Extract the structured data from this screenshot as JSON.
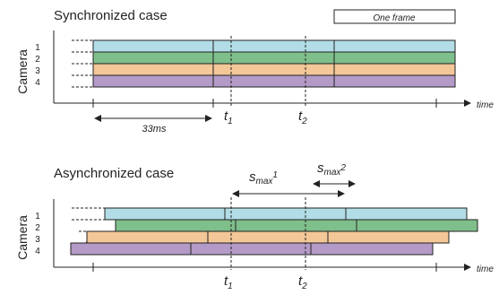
{
  "synchronized": {
    "title": "Synchronized case",
    "legend": "One frame",
    "ylabel": "Camera",
    "camera_labels": [
      "1",
      "2",
      "3",
      "4"
    ],
    "duration_label": "33ms",
    "time_label": "time",
    "t1": {
      "base": "t",
      "sub": "1"
    },
    "t2": {
      "base": "t",
      "sub": "2"
    }
  },
  "asynchronized": {
    "title": "Asynchronized case",
    "ylabel": "Camera",
    "camera_labels": [
      "1",
      "2",
      "3",
      "4"
    ],
    "time_label": "time",
    "t1": {
      "base": "t",
      "sub": "1"
    },
    "t2": {
      "base": "t",
      "sub": "2"
    },
    "smax1": {
      "base": "s",
      "sub": "max",
      "sup": "1"
    },
    "smax2": {
      "base": "s",
      "sub": "max",
      "sup": "2"
    }
  },
  "colors": {
    "camera1": "#b2dde6",
    "camera2": "#7fbf8b",
    "camera3": "#f3c797",
    "camera4": "#b49ac6",
    "stroke": "#222222"
  }
}
